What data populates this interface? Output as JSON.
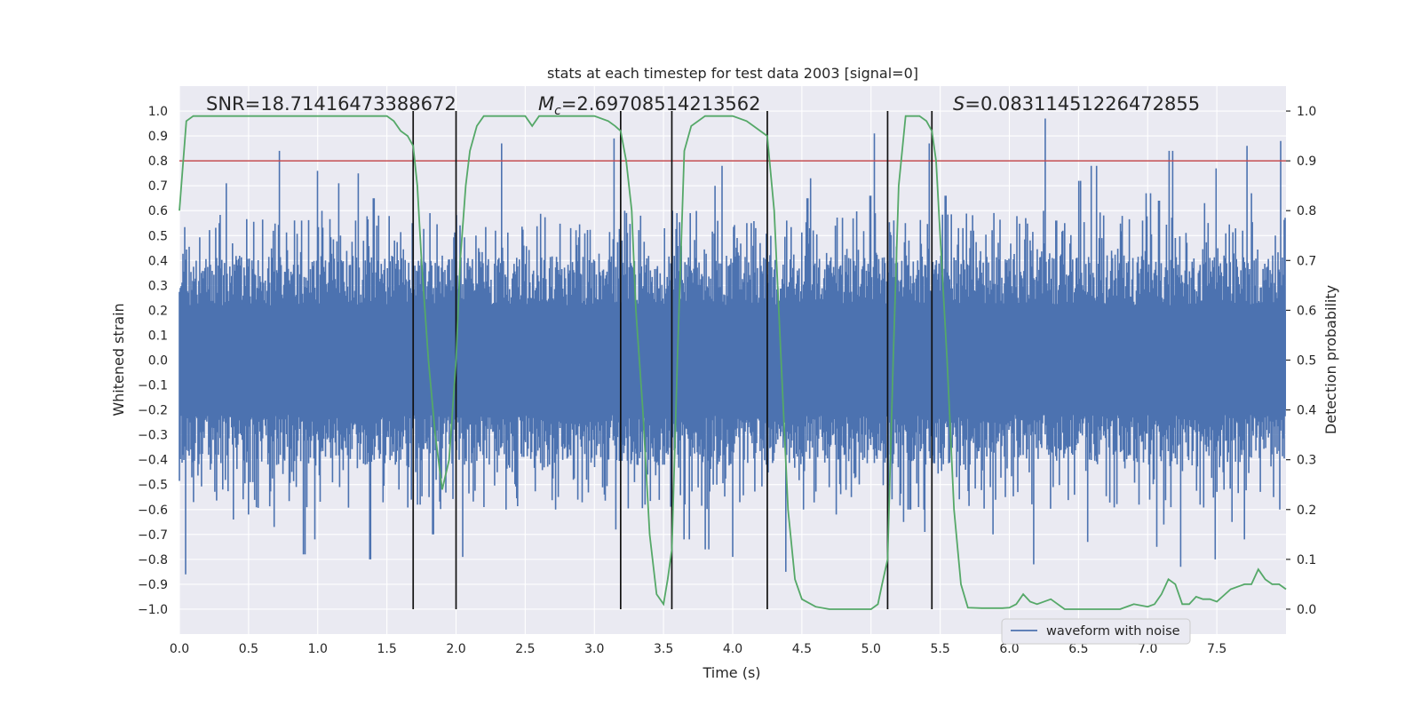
{
  "chart_data": {
    "type": "line",
    "title": "stats at each timestep for test data 2003 [signal=0]",
    "xlabel": "Time (s)",
    "ylabel_left": "Whitened strain",
    "ylabel_right": "Detection probability",
    "xlim": [
      0,
      8.0
    ],
    "ylim_left": [
      -1.1,
      1.1
    ],
    "ylim_right": [
      -0.05,
      1.05
    ],
    "grid": true,
    "legend_position": "bottom-right",
    "x_ticks": [
      "0.0",
      "0.5",
      "1.0",
      "1.5",
      "2.0",
      "2.5",
      "3.0",
      "3.5",
      "4.0",
      "4.5",
      "5.0",
      "5.5",
      "6.0",
      "6.5",
      "7.0",
      "7.5"
    ],
    "left_ticks": [
      "1.0",
      "0.9",
      "0.8",
      "0.7",
      "0.6",
      "0.5",
      "0.4",
      "0.3",
      "0.2",
      "0.1",
      "0.0",
      "−0.1",
      "−0.2",
      "−0.3",
      "−0.4",
      "−0.5",
      "−0.6",
      "−0.7",
      "−0.8",
      "−0.9",
      "−1.0"
    ],
    "right_ticks": [
      "1.0",
      "0.9",
      "0.8",
      "0.7",
      "0.6",
      "0.5",
      "0.4",
      "0.3",
      "0.2",
      "0.1",
      "0.0"
    ],
    "annotations": {
      "snr": "SNR=18.71416473388672",
      "mc_symbol": "M",
      "mc_sub": "c",
      "mc_value": "=2.69708514213562",
      "s_symbol": "S",
      "s_value": "=0.08311451226472855"
    },
    "legend": {
      "entries": [
        {
          "label": "waveform with noise",
          "color": "#4c72b0"
        }
      ]
    },
    "threshold": {
      "value": 0.9,
      "axis": "right",
      "color": "#c44e52"
    },
    "vertical_lines": [
      1.69,
      2.0,
      3.19,
      3.56,
      4.25,
      5.12,
      5.44
    ],
    "detection_probability": {
      "color": "#55a868",
      "x": [
        0.0,
        0.05,
        0.1,
        0.2,
        0.3,
        0.4,
        0.5,
        0.6,
        0.7,
        0.8,
        0.9,
        1.0,
        1.1,
        1.2,
        1.3,
        1.4,
        1.5,
        1.55,
        1.6,
        1.65,
        1.69,
        1.72,
        1.75,
        1.8,
        1.85,
        1.9,
        1.95,
        2.0,
        2.03,
        2.07,
        2.1,
        2.15,
        2.2,
        2.3,
        2.4,
        2.5,
        2.55,
        2.6,
        2.7,
        2.8,
        2.9,
        3.0,
        3.1,
        3.15,
        3.19,
        3.23,
        3.27,
        3.3,
        3.35,
        3.4,
        3.45,
        3.5,
        3.53,
        3.56,
        3.6,
        3.65,
        3.7,
        3.8,
        3.9,
        4.0,
        4.1,
        4.15,
        4.2,
        4.25,
        4.3,
        4.35,
        4.4,
        4.45,
        4.5,
        4.6,
        4.7,
        4.8,
        4.9,
        5.0,
        5.05,
        5.08,
        5.12,
        5.16,
        5.2,
        5.25,
        5.3,
        5.35,
        5.4,
        5.44,
        5.47,
        5.5,
        5.55,
        5.6,
        5.65,
        5.7,
        5.8,
        5.9,
        5.95,
        6.0,
        6.05,
        6.1,
        6.15,
        6.2,
        6.3,
        6.4,
        6.5,
        6.6,
        6.7,
        6.8,
        6.9,
        7.0,
        7.05,
        7.1,
        7.15,
        7.2,
        7.25,
        7.3,
        7.35,
        7.4,
        7.45,
        7.5,
        7.6,
        7.7,
        7.75,
        7.8,
        7.85,
        7.9,
        7.95,
        8.0
      ],
      "y": [
        0.8,
        0.98,
        0.99,
        0.99,
        0.99,
        0.99,
        0.99,
        0.99,
        0.99,
        0.99,
        0.99,
        0.99,
        0.99,
        0.99,
        0.99,
        0.99,
        0.99,
        0.98,
        0.96,
        0.95,
        0.93,
        0.85,
        0.7,
        0.5,
        0.35,
        0.24,
        0.3,
        0.5,
        0.7,
        0.85,
        0.92,
        0.97,
        0.99,
        0.99,
        0.99,
        0.99,
        0.97,
        0.99,
        0.99,
        0.99,
        0.99,
        0.99,
        0.98,
        0.97,
        0.96,
        0.9,
        0.8,
        0.6,
        0.4,
        0.15,
        0.03,
        0.01,
        0.06,
        0.12,
        0.5,
        0.92,
        0.97,
        0.99,
        0.99,
        0.99,
        0.98,
        0.97,
        0.96,
        0.95,
        0.8,
        0.5,
        0.2,
        0.06,
        0.02,
        0.005,
        0.0,
        0.0,
        0.0,
        0.0,
        0.01,
        0.05,
        0.1,
        0.5,
        0.85,
        0.99,
        0.99,
        0.99,
        0.98,
        0.96,
        0.9,
        0.75,
        0.5,
        0.2,
        0.05,
        0.003,
        0.002,
        0.002,
        0.002,
        0.003,
        0.01,
        0.03,
        0.015,
        0.01,
        0.02,
        0.0,
        0.0,
        0.0,
        0.0,
        0.0,
        0.01,
        0.005,
        0.01,
        0.03,
        0.06,
        0.05,
        0.01,
        0.01,
        0.025,
        0.02,
        0.02,
        0.015,
        0.04,
        0.05,
        0.05,
        0.08,
        0.06,
        0.05,
        0.05,
        0.04
      ]
    },
    "waveform": {
      "label": "waveform with noise",
      "color": "#4c72b0",
      "peak_upper": [
        0.79,
        0.49,
        0.95,
        0.84,
        0.5,
        0.46,
        0.71,
        0.37,
        0.38,
        0.79,
        0.7,
        0.88,
        0.45,
        0.52,
        0.84,
        0.92,
        0.49,
        0.56,
        0.41,
        0.76,
        0.4,
        0.52,
        0.71,
        0.62,
        0.48,
        0.75,
        0.38,
        0.65,
        0.54,
        0.61,
        0.48,
        0.52,
        0.76,
        0.55,
        0.71,
        0.59,
        0.69,
        0.36,
        0.51,
        0.71,
        0.54,
        0.55,
        0.5,
        0.42,
        0.62,
        0.52,
        0.87,
        0.49,
        0.66,
        0.46,
        0.76,
        0.47,
        0.63,
        0.64,
        0.5,
        0.76,
        0.66,
        0.61,
        0.54,
        0.53,
        0.51,
        0.49,
        0.89,
        0.48,
        0.8,
        0.66,
        0.59,
        0.76,
        0.49,
        0.74,
        0.6,
        0.59,
        0.59,
        0.41,
        0.69,
        0.52,
        0.7,
        0.78,
        0.71,
        0.54,
        0.61,
        0.55,
        0.47,
        0.39,
        0.51,
        0.6,
        0.56,
        0.62,
        0.55,
        0.65,
        0.73,
        0.75,
        0.43,
        0.54,
        0.75,
        0.41,
        0.58,
        0.62,
        0.66,
        0.91,
        0.71,
        0.68,
        0.52,
        0.82,
        0.48,
        0.76,
        0.55,
        0.87,
        0.49,
        0.66,
        0.56,
        0.53,
        0.48,
        0.52,
        0.75,
        0.61,
        0.53,
        0.43,
        0.69,
        0.67,
        0.81,
        0.44,
        0.48,
        0.97,
        0.41,
        0.56,
        0.55,
        0.46,
        0.72,
        0.89,
        0.78,
        0.49,
        0.88,
        0.5,
        0.51,
        0.39,
        0.72,
        0.56,
        0.67,
        0.64,
        0.43,
        0.84,
        0.46,
        0.76,
        0.8,
        0.63,
        0.63,
        0.53,
        0.77,
        0.88,
        0.53,
        0.52,
        0.86,
        0.67,
        0.64,
        0.5,
        0.5,
        0.88
      ],
      "peak_lower": [
        -0.86,
        -0.41,
        -0.57,
        -0.71,
        -0.44,
        -0.58,
        -0.85,
        -0.64,
        -0.98,
        -0.62,
        -0.49,
        -0.55,
        -0.54,
        -0.67,
        -0.48,
        -0.72,
        -0.48,
        -0.78,
        -0.67,
        -0.72,
        -0.92,
        -0.45,
        -0.51,
        -0.39,
        -0.58,
        -0.58,
        -0.42,
        -0.8,
        -0.49,
        -0.56,
        -0.65,
        -0.52,
        -0.43,
        -0.56,
        -0.58,
        -0.55,
        -0.7,
        -0.55,
        -0.53,
        -0.59,
        -0.79,
        -0.78,
        -0.57,
        -0.59,
        -0.59,
        -0.45,
        -0.47,
        -0.52,
        -0.49,
        -0.62,
        -0.59,
        -0.55,
        -0.57,
        -0.69,
        -0.57,
        -0.54,
        -0.56,
        -0.76,
        -0.48,
        -0.58,
        -0.54,
        -0.6,
        -0.68,
        -0.64,
        -0.49,
        -0.63,
        -0.58,
        -0.54,
        -0.59,
        -0.54,
        -0.47,
        -0.68,
        -0.72,
        -0.58,
        -0.47,
        -0.76,
        -0.5,
        -0.42,
        -0.57,
        -0.79,
        -0.58,
        -0.55,
        -0.63,
        -0.53,
        -0.55,
        -0.55,
        -0.85,
        -0.69,
        -0.58,
        -0.6,
        -0.52,
        -0.5,
        -0.56,
        -0.62,
        -0.74,
        -0.55,
        -0.47,
        -0.51,
        -0.8,
        -0.69,
        -0.58,
        -0.62,
        -0.43,
        -0.65,
        -0.6,
        -0.59,
        -0.69,
        -0.56,
        -0.77,
        -0.52,
        -0.47,
        -0.45,
        -0.67,
        -0.54,
        -0.48,
        -0.65,
        -0.7,
        -0.55,
        -0.49,
        -0.8,
        -0.59,
        -0.82,
        -0.44,
        -0.71,
        -0.51,
        -0.57,
        -0.5,
        -0.62,
        -0.66,
        -0.73,
        -0.79,
        -0.61,
        -0.54,
        -0.41,
        -0.53,
        -0.62,
        -0.63,
        -0.58,
        -0.56,
        -0.75,
        -0.66,
        -0.55,
        -0.83,
        -0.62,
        -0.51,
        -0.58,
        -0.68,
        -0.8,
        -0.55,
        -0.45,
        -0.65,
        -0.52,
        -0.72,
        -0.82,
        -0.6,
        -0.54,
        -0.55,
        -0.6,
        -0.6,
        -0.56
      ]
    }
  }
}
